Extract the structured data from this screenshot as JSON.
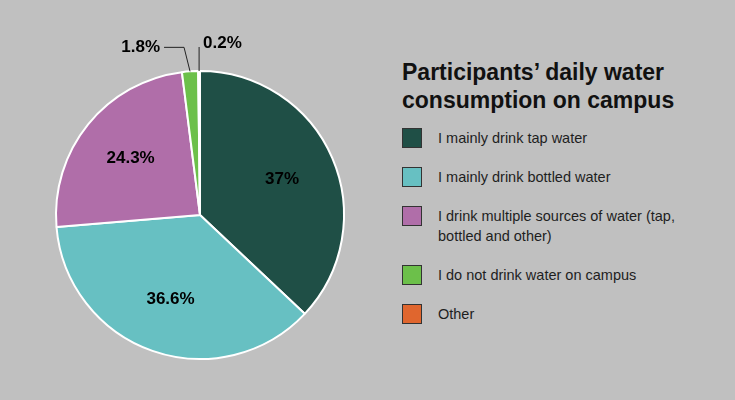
{
  "chart_data": {
    "type": "pie",
    "title": "Participants’ daily water consumption on campus",
    "categories": [
      "I mainly drink tap water",
      "I mainly drink bottled water",
      "I drink multiple sources of water (tap, bottled and other)",
      "I do not drink water on campus",
      "Other"
    ],
    "values": [
      37,
      36.6,
      24.3,
      1.8,
      0.2
    ],
    "value_labels": [
      "37%",
      "36.6%",
      "24.3%",
      "1.8%",
      "0.2%"
    ],
    "colors": [
      "#1f4f46",
      "#67c0c2",
      "#b06ea9",
      "#6cc04a",
      "#e0662e"
    ],
    "data_labels": true,
    "legend": "right"
  }
}
